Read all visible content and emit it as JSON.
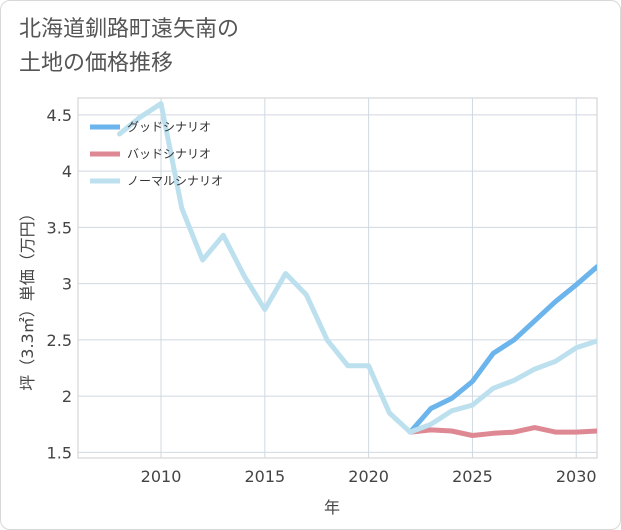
{
  "title_lines": [
    "北海道釧路町遠矢南の",
    "土地の価格推移"
  ],
  "chart_data": {
    "type": "line",
    "xlabel": "年",
    "ylabel": "坪（3.3㎡）単価（万円）",
    "xlim": [
      2006,
      2031
    ],
    "ylim": [
      1.45,
      4.65
    ],
    "x_ticks": [
      2010,
      2015,
      2020,
      2025,
      2030
    ],
    "x_tick_labels": [
      "2010",
      "2015",
      "2020",
      "2025",
      "2030"
    ],
    "y_ticks": [
      1.5,
      2,
      2.5,
      3,
      3.5,
      4,
      4.5
    ],
    "y_tick_labels": [
      "1.5",
      "2",
      "2.5",
      "3",
      "3.5",
      "4",
      "4.5"
    ],
    "grid": true,
    "legend_position": "top-left",
    "series": [
      {
        "name": "グッドシナリオ",
        "color": "#6cb4ec",
        "x": [
          2022,
          2023,
          2024,
          2025,
          2026,
          2027,
          2028,
          2029,
          2030,
          2031
        ],
        "y": [
          1.68,
          1.89,
          1.98,
          2.13,
          2.38,
          2.5,
          2.67,
          2.84,
          2.99,
          3.15
        ]
      },
      {
        "name": "バッドシナリオ",
        "color": "#dd8892",
        "x": [
          2022,
          2023,
          2024,
          2025,
          2026,
          2027,
          2028,
          2029,
          2030,
          2031
        ],
        "y": [
          1.68,
          1.7,
          1.69,
          1.65,
          1.67,
          1.68,
          1.72,
          1.68,
          1.68,
          1.69
        ]
      },
      {
        "name": "ノーマルシナリオ",
        "color": "#bde0ef",
        "x": [
          2008,
          2009,
          2010,
          2011,
          2012,
          2013,
          2014,
          2015,
          2016,
          2017,
          2018,
          2019,
          2020,
          2021,
          2022,
          2023,
          2024,
          2025,
          2026,
          2027,
          2028,
          2029,
          2030,
          2031
        ],
        "y": [
          4.33,
          4.48,
          4.6,
          3.67,
          3.21,
          3.43,
          3.07,
          2.77,
          3.09,
          2.9,
          2.5,
          2.27,
          2.27,
          1.85,
          1.68,
          1.75,
          1.87,
          1.92,
          2.07,
          2.14,
          2.24,
          2.31,
          2.43,
          2.49
        ]
      }
    ]
  }
}
